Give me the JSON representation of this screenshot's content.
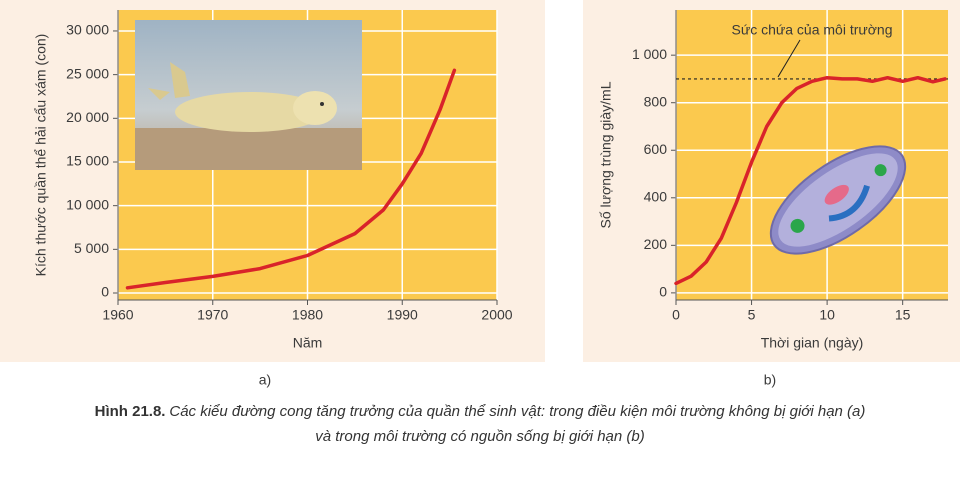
{
  "chart_data": [
    {
      "type": "line",
      "panel_label": "a)",
      "x_label": "Năm",
      "y_label": "Kích thước quần thể hải cẩu xám (con)",
      "x": [
        1961,
        1965,
        1970,
        1975,
        1980,
        1985,
        1988,
        1990,
        1992,
        1994,
        1995.5
      ],
      "values": [
        600,
        1200,
        1900,
        2800,
        4300,
        6800,
        9500,
        12500,
        16000,
        21000,
        25500
      ],
      "color": "#d9232a",
      "xlim": [
        1960,
        2000
      ],
      "xticks": [
        1960,
        1970,
        1980,
        1990,
        2000
      ],
      "ylim": [
        -800,
        32400
      ],
      "yticks": [
        0,
        {
          "value": 5000,
          "label": "5 000"
        },
        {
          "value": 10000,
          "label": "10 000"
        },
        {
          "value": 15000,
          "label": "15 000"
        },
        {
          "value": 20000,
          "label": "20 000"
        },
        {
          "value": 25000,
          "label": "25 000"
        },
        {
          "value": 30000,
          "label": "30 000"
        }
      ],
      "grid": true
    },
    {
      "type": "line",
      "panel_label": "b)",
      "x_label": "Thời gian (ngày)",
      "y_label": "Số lượng trùng giày/mL",
      "x": [
        0,
        1,
        2,
        3,
        4,
        5,
        6,
        7,
        8,
        9,
        10,
        11,
        12,
        13,
        14,
        15,
        16,
        17,
        17.8
      ],
      "values": [
        40,
        70,
        130,
        230,
        380,
        550,
        700,
        800,
        860,
        890,
        905,
        900,
        900,
        890,
        905,
        890,
        905,
        888,
        900
      ],
      "color": "#d9232a",
      "xlim": [
        0,
        18
      ],
      "xticks": [
        0,
        5,
        10,
        15
      ],
      "ylim": [
        -30,
        1190
      ],
      "yticks": [
        0,
        200,
        400,
        600,
        800,
        {
          "value": 1000,
          "label": "1 000"
        }
      ],
      "grid": true,
      "reference_line": {
        "value": 900,
        "label": "Sức chứa của môi trường"
      }
    }
  ],
  "figure": {
    "number": "Hình 21.8.",
    "caption": [
      "Các kiểu đường cong tăng trưởng của quần thể sinh vật: trong điều kiện môi trường không bị giới hạn (a)",
      "và trong môi trường có nguồn sống bị giới hạn (b)"
    ]
  }
}
